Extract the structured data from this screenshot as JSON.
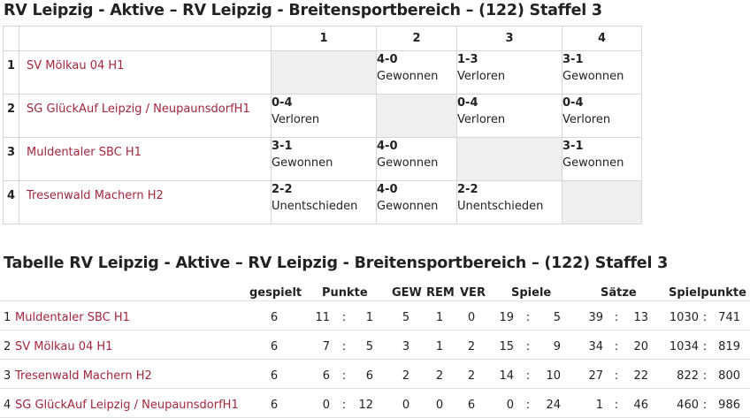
{
  "matrix_title": "RV Leipzig - Aktive – RV Leipzig - Breitensportbereich – (122) Staffel 3",
  "matrix": {
    "columns": [
      "1",
      "2",
      "3",
      "4"
    ],
    "rows": [
      {
        "rank": "1",
        "team": "SV Mölkau 04 H1",
        "cells": [
          null,
          {
            "score": "4-0",
            "word": "Gewonnen"
          },
          {
            "score": "1-3",
            "word": "Verloren"
          },
          {
            "score": "3-1",
            "word": "Gewonnen"
          }
        ]
      },
      {
        "rank": "2",
        "team": "SG GlückAuf Leipzig / NeupaunsdorfH1",
        "cells": [
          {
            "score": "0-4",
            "word": "Verloren"
          },
          null,
          {
            "score": "0-4",
            "word": "Verloren"
          },
          {
            "score": "0-4",
            "word": "Verloren"
          }
        ]
      },
      {
        "rank": "3",
        "team": "Muldentaler SBC H1",
        "cells": [
          {
            "score": "3-1",
            "word": "Gewonnen"
          },
          {
            "score": "4-0",
            "word": "Gewonnen"
          },
          null,
          {
            "score": "3-1",
            "word": "Gewonnen"
          }
        ]
      },
      {
        "rank": "4",
        "team": "Tresenwald Machern H2",
        "cells": [
          {
            "score": "2-2",
            "word": "Unentschieden"
          },
          {
            "score": "4-0",
            "word": "Gewonnen"
          },
          {
            "score": "2-2",
            "word": "Unentschieden"
          },
          null
        ]
      }
    ]
  },
  "table_title": "Tabelle RV Leipzig - Aktive – RV Leipzig - Breitensportbereich – (122) Staffel 3",
  "table": {
    "headers": {
      "gespielt": "gespielt",
      "punkte": "Punkte",
      "gew": "GEW",
      "rem": "REM",
      "ver": "VER",
      "spiele": "Spiele",
      "saetze": "Sätze",
      "spielpunkte": "Spielpunkte"
    },
    "sep": ":",
    "rows": [
      {
        "rank": "1",
        "team": "Muldentaler SBC H1",
        "gespielt": "6",
        "p1": "11",
        "p2": "1",
        "gew": "5",
        "rem": "1",
        "ver": "0",
        "s1": "19",
        "s2": "5",
        "sa1": "39",
        "sa2": "13",
        "sp1": "1030",
        "sp2": "741"
      },
      {
        "rank": "2",
        "team": "SV Mölkau 04 H1",
        "gespielt": "6",
        "p1": "7",
        "p2": "5",
        "gew": "3",
        "rem": "1",
        "ver": "2",
        "s1": "15",
        "s2": "9",
        "sa1": "34",
        "sa2": "20",
        "sp1": "1034",
        "sp2": "819"
      },
      {
        "rank": "3",
        "team": "Tresenwald Machern H2",
        "gespielt": "6",
        "p1": "6",
        "p2": "6",
        "gew": "2",
        "rem": "2",
        "ver": "2",
        "s1": "14",
        "s2": "10",
        "sa1": "27",
        "sa2": "22",
        "sp1": "822",
        "sp2": "800"
      },
      {
        "rank": "4",
        "team": "SG GlückAuf Leipzig / NeupaunsdorfH1",
        "gespielt": "6",
        "p1": "0",
        "p2": "12",
        "gew": "0",
        "rem": "0",
        "ver": "6",
        "s1": "0",
        "s2": "24",
        "sa1": "1",
        "sa2": "46",
        "sp1": "460",
        "sp2": "986"
      }
    ]
  },
  "colors": {
    "link": "#a3263f",
    "diagonal": "#efefef",
    "border": "#d6d6d6"
  }
}
